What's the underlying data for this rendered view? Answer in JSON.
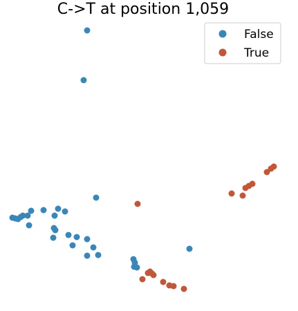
{
  "chart_data": {
    "type": "scatter",
    "title": "C->T at position 1,059",
    "xlabel": "",
    "ylabel": "",
    "axes_visible": false,
    "grid": false,
    "legend_placement": "top-right",
    "series": [
      {
        "name": "False",
        "color": "#3a87b7",
        "points": [
          [
            126,
            44
          ],
          [
            121,
            116
          ],
          [
            139,
            286
          ],
          [
            18,
            315
          ],
          [
            22,
            316
          ],
          [
            26,
            317
          ],
          [
            30,
            314
          ],
          [
            33,
            312
          ],
          [
            40,
            312
          ],
          [
            45,
            305
          ],
          [
            63,
            304
          ],
          [
            79,
            312
          ],
          [
            84,
            302
          ],
          [
            94,
            306
          ],
          [
            42,
            326
          ],
          [
            78,
            330
          ],
          [
            80,
            333
          ],
          [
            77,
            344
          ],
          [
            99,
            340
          ],
          [
            111,
            343
          ],
          [
            126,
            346
          ],
          [
            105,
            355
          ],
          [
            135,
            358
          ],
          [
            126,
            370
          ],
          [
            142,
            369
          ],
          [
            193,
            375
          ],
          [
            195,
            380
          ],
          [
            194,
            386
          ],
          [
            198,
            387
          ],
          [
            274,
            360
          ]
        ]
      },
      {
        "name": "True",
        "color": "#c05838",
        "points": [
          [
            199,
            295
          ],
          [
            335,
            280
          ],
          [
            351,
            283
          ],
          [
            355,
            272
          ],
          [
            360,
            269
          ],
          [
            365,
            266
          ],
          [
            386,
            249
          ],
          [
            392,
            244
          ],
          [
            396,
            241
          ],
          [
            214,
            395
          ],
          [
            217,
            393
          ],
          [
            220,
            396
          ],
          [
            222,
            398
          ],
          [
            206,
            404
          ],
          [
            236,
            408
          ],
          [
            245,
            413
          ],
          [
            251,
            414
          ],
          [
            266,
            418
          ]
        ]
      }
    ]
  }
}
